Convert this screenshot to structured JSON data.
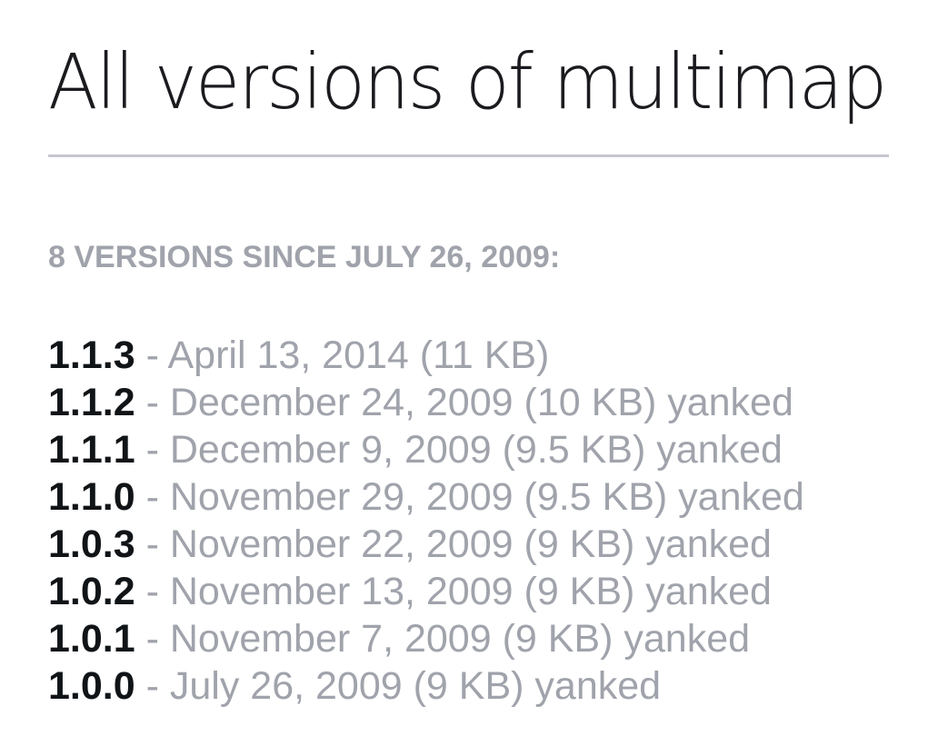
{
  "page": {
    "title": "All versions of multimap",
    "summary": "8 VERSIONS SINCE JULY 26, 2009:"
  },
  "versions": [
    {
      "number": "1.1.3",
      "sep": " - ",
      "date": "April 13, 2014",
      "size": " (11 KB)",
      "status": ""
    },
    {
      "number": "1.1.2",
      "sep": " - ",
      "date": "December 24, 2009",
      "size": " (10 KB)",
      "status": " yanked"
    },
    {
      "number": "1.1.1",
      "sep": " - ",
      "date": "December 9, 2009",
      "size": " (9.5 KB)",
      "status": " yanked"
    },
    {
      "number": "1.1.0",
      "sep": " - ",
      "date": "November 29, 2009",
      "size": " (9.5 KB)",
      "status": " yanked"
    },
    {
      "number": "1.0.3",
      "sep": " - ",
      "date": "November 22, 2009",
      "size": " (9 KB)",
      "status": " yanked"
    },
    {
      "number": "1.0.2",
      "sep": " - ",
      "date": "November 13, 2009",
      "size": " (9 KB)",
      "status": " yanked"
    },
    {
      "number": "1.0.1",
      "sep": " - ",
      "date": "November 7, 2009",
      "size": " (9 KB)",
      "status": " yanked"
    },
    {
      "number": "1.0.0",
      "sep": " - ",
      "date": "July 26, 2009",
      "size": " (9 KB)",
      "status": " yanked"
    }
  ],
  "colors": {
    "title": "#1b1b1f",
    "muted": "#a0a3ab",
    "version": "#111417",
    "divider": "#c6c6cf"
  }
}
